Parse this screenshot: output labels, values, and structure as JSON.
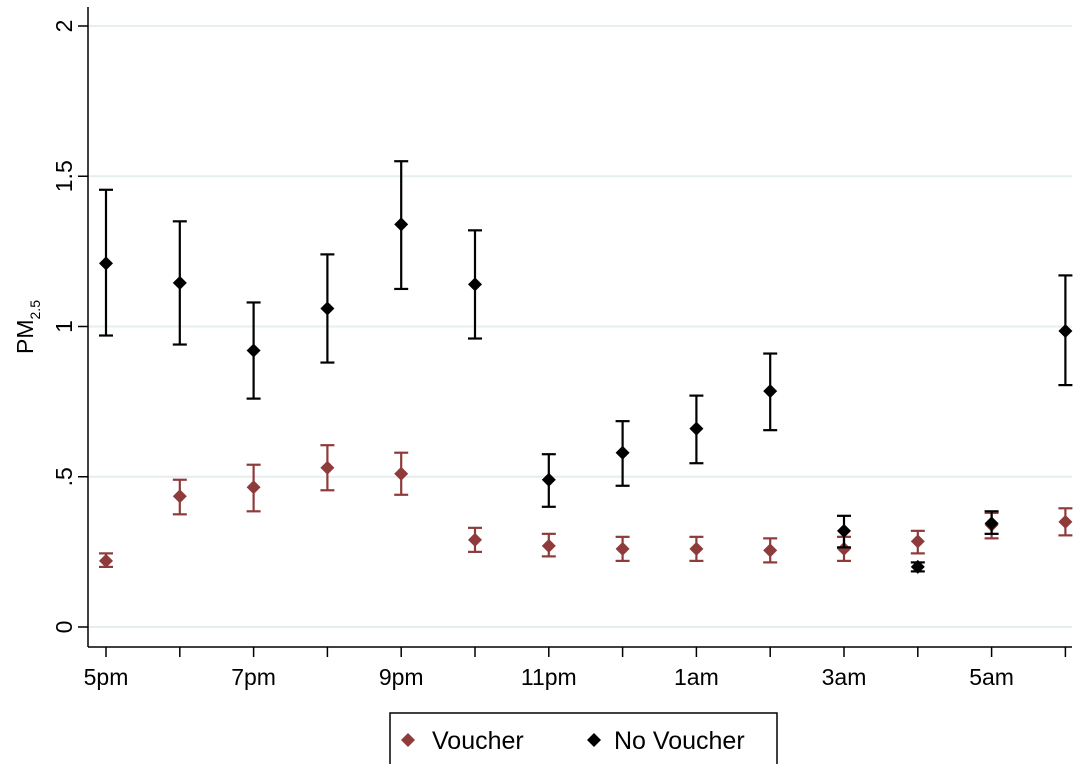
{
  "chart_data": {
    "type": "scatter",
    "title": "",
    "xlabel": "",
    "ylabel": "PM",
    "ylabel_subscript": "2.5",
    "x_categories": [
      "5pm",
      "6pm",
      "7pm",
      "8pm",
      "9pm",
      "10pm",
      "11pm",
      "12am",
      "1am",
      "2am",
      "3am",
      "4am",
      "5am",
      "6am"
    ],
    "x_tick_labels": [
      "5pm",
      "7pm",
      "9pm",
      "11pm",
      "1am",
      "3am",
      "5am"
    ],
    "y_ticks": [
      0,
      0.5,
      1,
      1.5,
      2
    ],
    "y_tick_labels": [
      "0",
      ".5",
      "1",
      "1.5",
      "2"
    ],
    "ylim": [
      0,
      2
    ],
    "grid": true,
    "legend_position": "bottom",
    "series": [
      {
        "name": "Voucher",
        "color": "#8f3b3b",
        "marker": "diamond",
        "values": [
          0.22,
          0.435,
          0.465,
          0.53,
          0.51,
          0.29,
          0.27,
          0.26,
          0.26,
          0.255,
          0.26,
          0.285,
          0.34,
          0.35
        ],
        "ci_low": [
          0.2,
          0.375,
          0.385,
          0.455,
          0.44,
          0.25,
          0.235,
          0.22,
          0.22,
          0.215,
          0.22,
          0.245,
          0.295,
          0.305
        ],
        "ci_high": [
          0.245,
          0.49,
          0.54,
          0.605,
          0.58,
          0.33,
          0.31,
          0.3,
          0.3,
          0.295,
          0.3,
          0.32,
          0.38,
          0.395
        ]
      },
      {
        "name": "No Voucher",
        "color": "#000000",
        "marker": "diamond",
        "values": [
          1.21,
          1.145,
          0.92,
          1.06,
          1.34,
          1.14,
          0.49,
          0.58,
          0.66,
          0.785,
          0.32,
          0.2,
          0.345,
          0.985
        ],
        "ci_low": [
          0.97,
          0.94,
          0.76,
          0.88,
          1.125,
          0.96,
          0.4,
          0.47,
          0.545,
          0.655,
          0.265,
          0.185,
          0.31,
          0.805
        ],
        "ci_high": [
          1.455,
          1.35,
          1.08,
          1.24,
          1.55,
          1.32,
          0.575,
          0.685,
          0.77,
          0.91,
          0.37,
          0.215,
          0.385,
          1.17
        ]
      }
    ]
  }
}
